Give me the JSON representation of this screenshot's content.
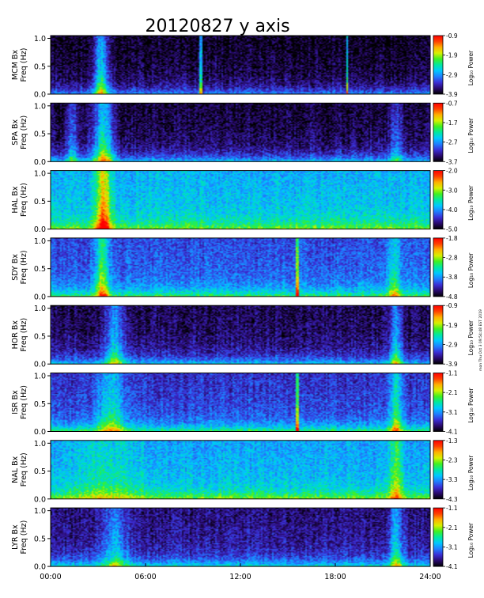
{
  "chart_data": {
    "type": "heatmap",
    "title": "20120827 y axis",
    "side_note": "mon Thu Oct 3 09:54:48 EST 2019",
    "x_tick_labels": [
      "00:00",
      "06:00",
      "12:00",
      "18:00",
      "24:00"
    ],
    "xlim_hours": [
      0,
      24
    ],
    "x_ticks_hours": [
      0,
      6,
      12,
      18,
      24
    ],
    "y_tick_labels": [
      "0.0",
      "0.5",
      "1.0"
    ],
    "y_ticks": [
      0,
      0.5,
      1.0
    ],
    "ylim": [
      0,
      1.05
    ],
    "ylabel": "Freq (Hz)",
    "colorbar_label": "Log₁₀ Power",
    "colorscale": [
      "#000000",
      "#2a0a6e",
      "#3b2fd6",
      "#1f7fff",
      "#00c8ff",
      "#00e8a0",
      "#40f020",
      "#d8f000",
      "#ffb000",
      "#ff4000",
      "#ff0000"
    ],
    "stations": [
      {
        "name": "MCM Bx",
        "cb_ticks": [
          "-0.9",
          "-1.9",
          "-2.9",
          "-3.9"
        ],
        "cb_values": [
          -0.9,
          -1.9,
          -2.9,
          -3.9
        ],
        "bg": 0.07,
        "lowband": 0.28,
        "hi": [
          {
            "h": 3.15,
            "w": 0.45,
            "a": 0.55
          }
        ],
        "spikes": [
          9.45,
          18.7
        ]
      },
      {
        "name": "SPA Bx",
        "cb_ticks": [
          "-0.7",
          "-1.7",
          "-2.7",
          "-3.7"
        ],
        "cb_values": [
          -0.7,
          -1.7,
          -2.7,
          -3.7
        ],
        "bg": 0.1,
        "lowband": 0.34,
        "hi": [
          {
            "h": 3.3,
            "w": 0.6,
            "a": 0.55
          },
          {
            "h": 1.3,
            "w": 0.3,
            "a": 0.3
          },
          {
            "h": 21.8,
            "w": 0.4,
            "a": 0.25
          }
        ],
        "spikes": []
      },
      {
        "name": "HAL Bx",
        "cb_ticks": [
          "-2.0",
          "-3.0",
          "-4.0",
          "-5.0"
        ],
        "cb_values": [
          -2.0,
          -3.0,
          -4.0,
          -5.0
        ],
        "bg": 0.42,
        "lowband": 0.25,
        "hi": [
          {
            "h": 3.3,
            "w": 0.45,
            "a": 0.6
          }
        ],
        "spikes": []
      },
      {
        "name": "SDY Bx",
        "cb_ticks": [
          "-1.8",
          "-2.8",
          "-3.8",
          "-4.8"
        ],
        "cb_values": [
          -1.8,
          -2.8,
          -3.8,
          -4.8
        ],
        "bg": 0.28,
        "lowband": 0.33,
        "hi": [
          {
            "h": 3.2,
            "w": 0.45,
            "a": 0.45
          },
          {
            "h": 21.7,
            "w": 0.4,
            "a": 0.35
          }
        ],
        "spikes": [
          15.55
        ]
      },
      {
        "name": "HOR Bx",
        "cb_ticks": [
          "-0.9",
          "-1.9",
          "-2.9",
          "-3.9"
        ],
        "cb_values": [
          -0.9,
          -1.9,
          -2.9,
          -3.9
        ],
        "bg": 0.12,
        "lowband": 0.32,
        "hi": [
          {
            "h": 4.0,
            "w": 0.6,
            "a": 0.4
          },
          {
            "h": 21.8,
            "w": 0.4,
            "a": 0.4
          }
        ],
        "spikes": []
      },
      {
        "name": "ISR Bx",
        "cb_ticks": [
          "-1.1",
          "-2.1",
          "-3.1",
          "-4.1"
        ],
        "cb_values": [
          -1.1,
          -2.1,
          -3.1,
          -4.1
        ],
        "bg": 0.24,
        "lowband": 0.36,
        "hi": [
          {
            "h": 3.8,
            "w": 0.8,
            "a": 0.35
          },
          {
            "h": 21.8,
            "w": 0.4,
            "a": 0.4
          }
        ],
        "spikes": [
          15.55
        ]
      },
      {
        "name": "NAL Bx",
        "cb_ticks": [
          "-1.3",
          "-2.3",
          "-3.3",
          "-4.3"
        ],
        "cb_values": [
          -1.3,
          -2.3,
          -3.3,
          -4.3
        ],
        "bg": 0.4,
        "lowband": 0.28,
        "hi": [
          {
            "h": 3.5,
            "w": 2.0,
            "a": 0.15
          },
          {
            "h": 21.8,
            "w": 0.4,
            "a": 0.35
          }
        ],
        "spikes": []
      },
      {
        "name": "LYR Bx",
        "cb_ticks": [
          "-1.1",
          "-2.1",
          "-3.1",
          "-4.1"
        ],
        "cb_values": [
          -1.1,
          -2.1,
          -3.1,
          -4.1
        ],
        "bg": 0.16,
        "lowband": 0.34,
        "hi": [
          {
            "h": 4.0,
            "w": 0.8,
            "a": 0.3
          },
          {
            "h": 21.8,
            "w": 0.4,
            "a": 0.4
          }
        ],
        "spikes": []
      }
    ]
  }
}
